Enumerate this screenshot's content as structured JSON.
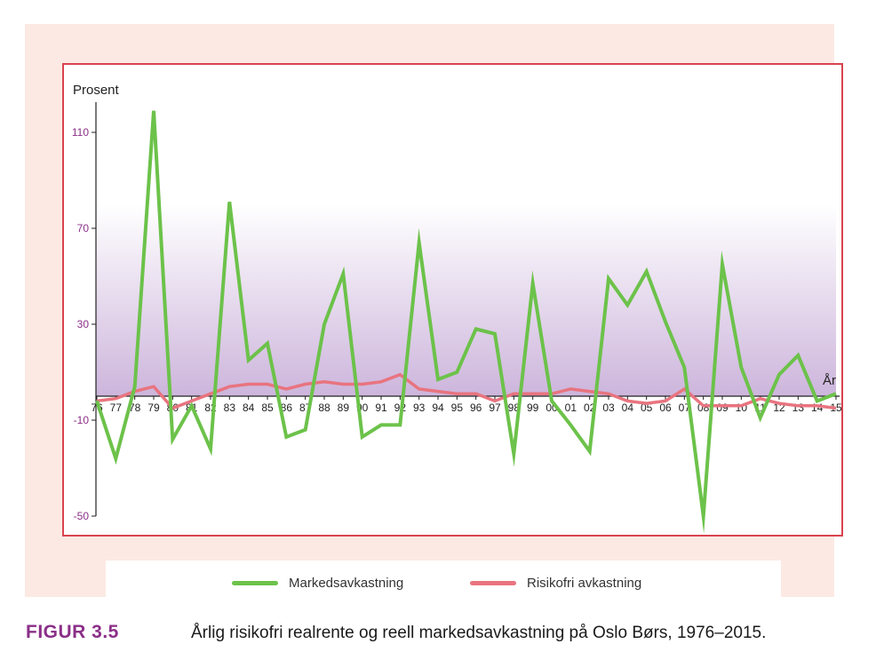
{
  "figure": {
    "label": "FIGUR 3.5",
    "caption": "Årlig risikofri realrente og reell markedsavkastning på Oslo Børs, 1976–2015."
  },
  "colors": {
    "panel_background": "#fce9e3",
    "frame_border": "#d9434f",
    "gradient_top": "#ffffff",
    "gradient_bottom": "#cdb5dc",
    "market_line": "#6cc24a",
    "riskfree_line": "#e8747f",
    "ytick_color": "#8b2f88",
    "caption_label_color": "#8b2f88"
  },
  "chart_data": {
    "type": "line",
    "ylabel": "Prosent",
    "xlabel": "År",
    "ylim": [
      -50,
      120
    ],
    "yticks": [
      110,
      70,
      30,
      -10,
      -50
    ],
    "legend_position": "bottom",
    "grid": false,
    "categories": [
      "76",
      "77",
      "78",
      "79",
      "80",
      "81",
      "82",
      "83",
      "84",
      "85",
      "86",
      "87",
      "88",
      "89",
      "90",
      "91",
      "92",
      "93",
      "94",
      "95",
      "96",
      "97",
      "98",
      "99",
      "00",
      "01",
      "02",
      "03",
      "04",
      "05",
      "06",
      "07",
      "08",
      "09",
      "10",
      "11",
      "12",
      "13",
      "14",
      "15"
    ],
    "series": [
      {
        "name": "Markedsavkastning",
        "color": "#6cc24a",
        "values": [
          -2,
          -26,
          4,
          119,
          -18,
          -4,
          -22,
          81,
          15,
          22,
          -17,
          -14,
          30,
          51,
          -17,
          -12,
          -12,
          64,
          7,
          10,
          28,
          26,
          -24,
          47,
          -2,
          -12,
          -23,
          49,
          38,
          52,
          31,
          12,
          -50,
          55,
          12,
          -9,
          9,
          17,
          -2,
          1
        ],
        "values_note_removed": true
      },
      {
        "name": "Risikofri avkastning",
        "color": "#e8747f",
        "values": [
          -2,
          -1,
          2,
          4,
          -5,
          -2,
          1,
          4,
          5,
          5,
          3,
          5,
          6,
          5,
          5,
          6,
          9,
          3,
          2,
          1,
          1,
          -2,
          1,
          1,
          1,
          3,
          2,
          1,
          -2,
          -3,
          -2,
          3,
          -4,
          -4,
          -4,
          -1,
          -3,
          -4,
          -4,
          -5
        ]
      }
    ]
  }
}
